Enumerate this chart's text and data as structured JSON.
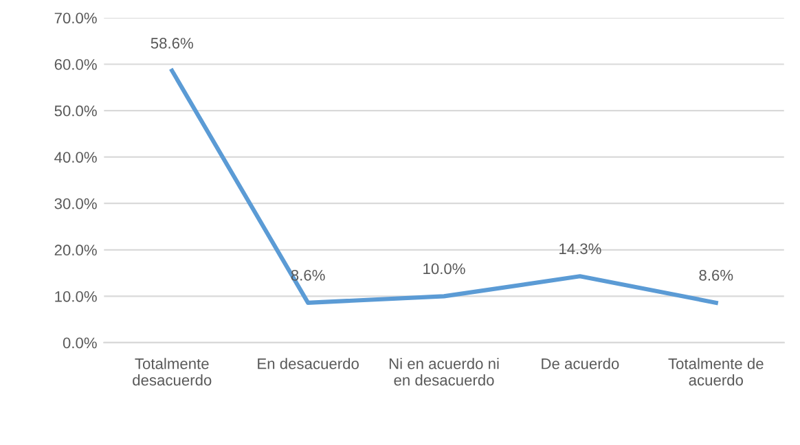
{
  "chart_data": {
    "type": "line",
    "categories": [
      "Totalmente\ndesacuerdo",
      "En desacuerdo",
      "Ni en acuerdo ni\nen desacuerdo",
      "De acuerdo",
      "Totalmente de\nacuerdo"
    ],
    "series": [
      {
        "color": "#5b9bd5",
        "values": [
          58.6,
          8.6,
          10.0,
          14.3,
          8.6
        ],
        "value_labels": [
          "58.6%",
          "8.6%",
          "10.0%",
          "14.3%",
          "8.6%"
        ]
      }
    ],
    "ylim": [
      0,
      70
    ],
    "yticks": [
      {
        "value": 0,
        "label": "0.0%"
      },
      {
        "value": 10,
        "label": "10.0%"
      },
      {
        "value": 20,
        "label": "20.0%"
      },
      {
        "value": 30,
        "label": "30.0%"
      },
      {
        "value": 40,
        "label": "40.0%"
      },
      {
        "value": 50,
        "label": "50.0%"
      },
      {
        "value": 60,
        "label": "60.0%"
      },
      {
        "value": 70,
        "label": "70.0%"
      }
    ],
    "grid": "y",
    "legend": false,
    "marker": "none",
    "line_style": "solid"
  }
}
